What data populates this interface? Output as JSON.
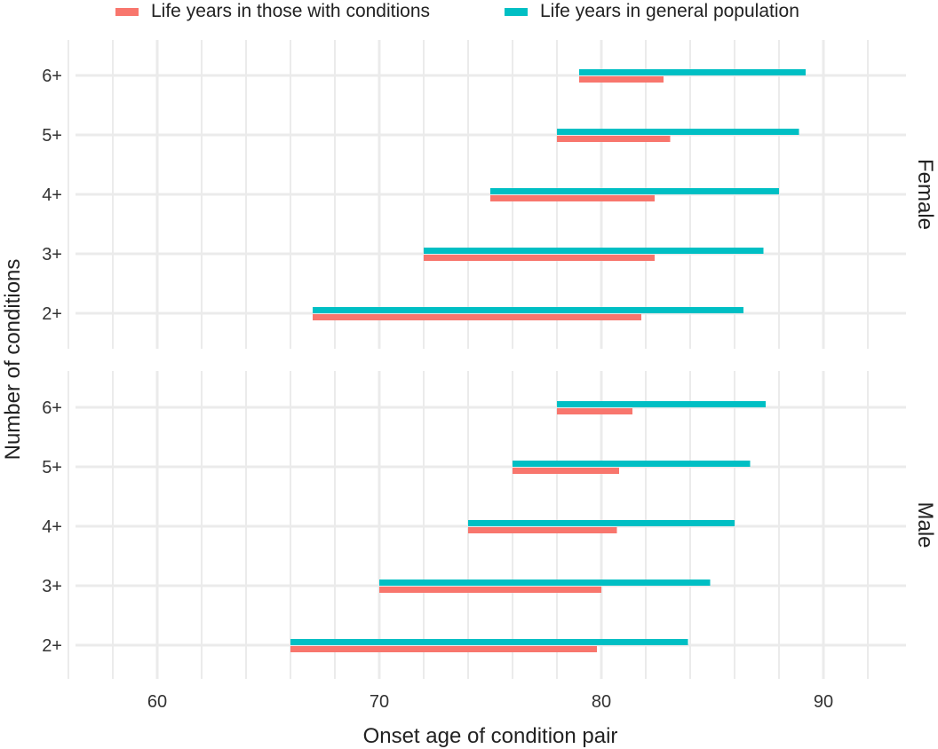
{
  "chart_data": {
    "type": "bar",
    "subtype": "horizontal-range-bar, faceted",
    "xlabel": "Onset age of condition pair",
    "ylabel": "Number of conditions",
    "xlim": [
      56,
      93.7
    ],
    "x_ticks": [
      60,
      70,
      80,
      90
    ],
    "x_minor_grid_step": 2,
    "grid": true,
    "legend_position": "top",
    "categories": [
      "2+",
      "3+",
      "4+",
      "5+",
      "6+"
    ],
    "series": [
      {
        "name": "Life years in those with conditions",
        "color": "#F8766D",
        "key": "with_conditions"
      },
      {
        "name": "Life years in general population",
        "color": "#00BFC4",
        "key": "general_population"
      }
    ],
    "facets": [
      {
        "label": "Female",
        "rows": [
          {
            "category": "6+",
            "onset": 79.0,
            "with_conditions_end": 82.8,
            "general_population_end": 89.2
          },
          {
            "category": "5+",
            "onset": 78.0,
            "with_conditions_end": 83.1,
            "general_population_end": 88.9
          },
          {
            "category": "4+",
            "onset": 75.0,
            "with_conditions_end": 82.4,
            "general_population_end": 88.0
          },
          {
            "category": "3+",
            "onset": 72.0,
            "with_conditions_end": 82.4,
            "general_population_end": 87.3
          },
          {
            "category": "2+",
            "onset": 67.0,
            "with_conditions_end": 81.8,
            "general_population_end": 86.4
          }
        ]
      },
      {
        "label": "Male",
        "rows": [
          {
            "category": "6+",
            "onset": 78.0,
            "with_conditions_end": 81.4,
            "general_population_end": 87.4
          },
          {
            "category": "5+",
            "onset": 76.0,
            "with_conditions_end": 80.8,
            "general_population_end": 86.7
          },
          {
            "category": "4+",
            "onset": 74.0,
            "with_conditions_end": 80.7,
            "general_population_end": 86.0
          },
          {
            "category": "3+",
            "onset": 70.0,
            "with_conditions_end": 80.0,
            "general_population_end": 84.9
          },
          {
            "category": "2+",
            "onset": 66.0,
            "with_conditions_end": 79.8,
            "general_population_end": 83.9
          }
        ]
      }
    ]
  },
  "legend": {
    "items": [
      {
        "label": "Life years in those with conditions",
        "color": "#F8766D"
      },
      {
        "label": "Life years in general population",
        "color": "#00BFC4"
      }
    ]
  }
}
